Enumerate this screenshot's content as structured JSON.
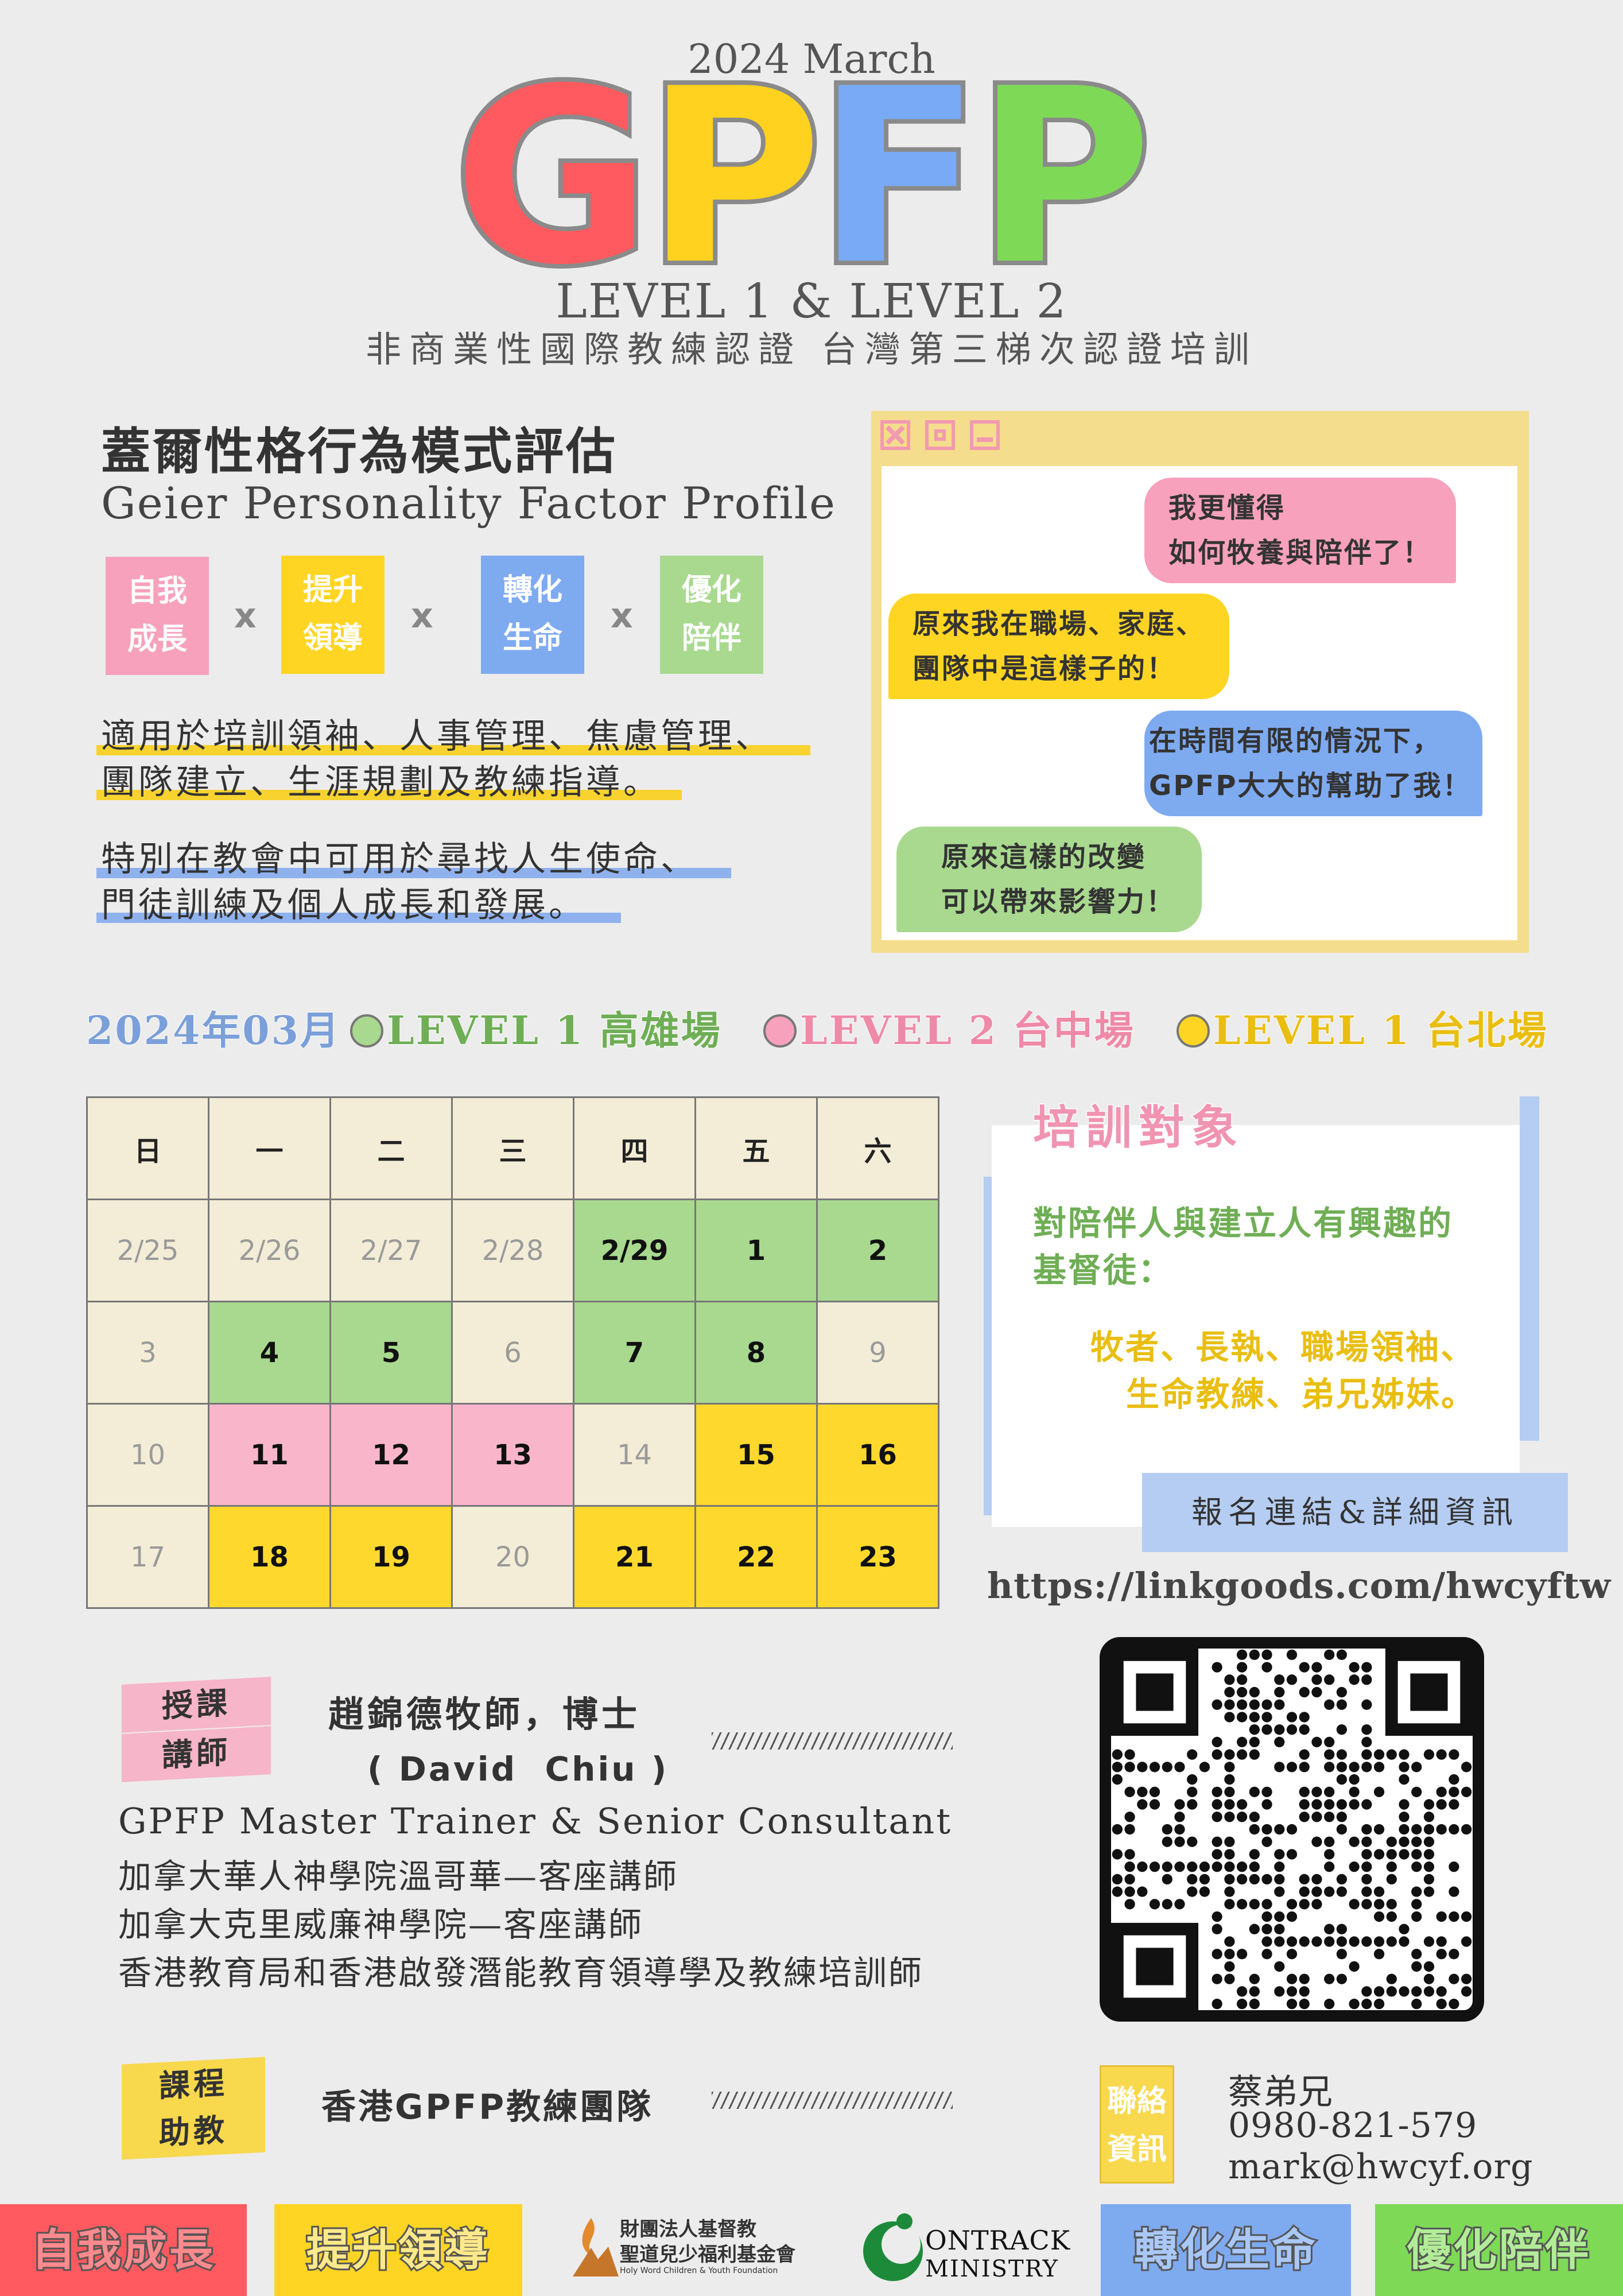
{
  "header": {
    "subtitle": "2024  March",
    "title_letters": [
      {
        "char": "G",
        "color": "#ff5a5f"
      },
      {
        "char": "P",
        "color": "#ffd21f"
      },
      {
        "char": "F",
        "color": "#78aaf5"
      },
      {
        "char": "P",
        "color": "#7ed957"
      }
    ],
    "levels": "LEVEL 1 & LEVEL 2",
    "tagline": "非商業性國際教練認證 台灣第三梯次認證培訓"
  },
  "intro": {
    "zh_title": "蓋爾性格行為模式評估",
    "en_title": "Geier Personality Factor Profile",
    "tags": [
      {
        "line1": "自我",
        "line2": "成長",
        "color": "#f7a1bc"
      },
      {
        "line1": "提升",
        "line2": "領導",
        "color": "#ffd524"
      },
      {
        "line1": "轉化",
        "line2": "生命",
        "color": "#7eaaf0"
      },
      {
        "line1": "優化",
        "line2": "陪伴",
        "color": "#a8d98f"
      }
    ],
    "tag_separator": "x",
    "para1": [
      "適用於培訓領袖、人事管理、焦慮管理、",
      "團隊建立、生涯規劃及教練指導。"
    ],
    "para2": [
      "特別在教會中可用於尋找人生使命、",
      "門徒訓練及個人成長和發展。"
    ]
  },
  "chat": {
    "bubbles": [
      {
        "lines": [
          "我更懂得",
          "如何牧養與陪伴了！"
        ],
        "color": "#f7a1bc"
      },
      {
        "lines": [
          "原來我在職場、家庭、",
          "團隊中是這樣子的！"
        ],
        "color": "#ffd524"
      },
      {
        "lines": [
          "在時間有限的情況下，",
          "GPFP大大的幫助了我！"
        ],
        "color": "#7eaaf0"
      },
      {
        "lines": [
          "原來這樣的改變",
          "可以帶來影響力！"
        ],
        "color": "#a8d98f"
      }
    ]
  },
  "schedule": {
    "month_label": "2024年03月",
    "legend": [
      {
        "label": "LEVEL 1 高雄場",
        "color": "#a8d98f",
        "text_color": "#6fae55"
      },
      {
        "label": "LEVEL 2 台中場",
        "color": "#f7a1bc",
        "text_color": "#ee8aa8"
      },
      {
        "label": "LEVEL 1 台北場",
        "color": "#ffd524",
        "text_color": "#e9be10"
      }
    ],
    "weekdays": [
      "日",
      "一",
      "二",
      "三",
      "四",
      "五",
      "六"
    ],
    "weeks": [
      [
        {
          "d": "2/25",
          "s": "off"
        },
        {
          "d": "2/26",
          "s": "off"
        },
        {
          "d": "2/27",
          "s": "off"
        },
        {
          "d": "2/28",
          "s": "off"
        },
        {
          "d": "2/29",
          "s": "g"
        },
        {
          "d": "1",
          "s": "g"
        },
        {
          "d": "2",
          "s": "g"
        }
      ],
      [
        {
          "d": "3",
          "s": "off"
        },
        {
          "d": "4",
          "s": "g"
        },
        {
          "d": "5",
          "s": "g"
        },
        {
          "d": "6",
          "s": "off"
        },
        {
          "d": "7",
          "s": "g"
        },
        {
          "d": "8",
          "s": "g"
        },
        {
          "d": "9",
          "s": "off"
        }
      ],
      [
        {
          "d": "10",
          "s": "off"
        },
        {
          "d": "11",
          "s": "p"
        },
        {
          "d": "12",
          "s": "p"
        },
        {
          "d": "13",
          "s": "p"
        },
        {
          "d": "14",
          "s": "off"
        },
        {
          "d": "15",
          "s": "y"
        },
        {
          "d": "16",
          "s": "y"
        }
      ],
      [
        {
          "d": "17",
          "s": "off"
        },
        {
          "d": "18",
          "s": "y"
        },
        {
          "d": "19",
          "s": "y"
        },
        {
          "d": "20",
          "s": "off"
        },
        {
          "d": "21",
          "s": "y"
        },
        {
          "d": "22",
          "s": "y"
        },
        {
          "d": "23",
          "s": "y"
        }
      ]
    ]
  },
  "target": {
    "title": "培訓對象",
    "line1": "對陪伴人與建立人有興趣的",
    "line2": "基督徒：",
    "line3": "牧者、長執、職場領袖、",
    "line4": "生命教練、弟兄姊妹。"
  },
  "register": {
    "label": "報名連結&詳細資訊",
    "link": "https://linkgoods.com/hwcyftw"
  },
  "instructor": {
    "ribbon_top": "授課",
    "ribbon_bottom": "講師",
    "name": "趙錦德牧師，博士",
    "name_en": "( David  Chiu )",
    "credentials": [
      "GPFP Master Trainer & Senior Consultant",
      "加拿大華人神學院溫哥華—客座講師",
      "加拿大克里威廉神學院—客座講師",
      "香港教育局和香港啟發潛能教育領導學及教練培訓師"
    ]
  },
  "assistant": {
    "ribbon_top": "課程",
    "ribbon_bottom": "助教",
    "name": "香港GPFP教練團隊"
  },
  "contact": {
    "label_top": "聯絡",
    "label_bottom": "資訊",
    "name": "蔡弟兄",
    "phone": "0980-821-579",
    "email": "mark@hwcyf.org"
  },
  "footer": {
    "items": [
      {
        "label": "自我成長",
        "color": "#ff5a5f"
      },
      {
        "label": "提升領導",
        "color": "#ffd524"
      },
      {
        "label": "轉化生命",
        "color": "#7eaaf0"
      },
      {
        "label": "優化陪伴",
        "color": "#7ed957"
      }
    ],
    "org1_line1": "財團法人基督教",
    "org1_line2": "聖道兒少福利基金會",
    "org1_line3": "Holy Word Children & Youth Foundation",
    "org2_line1": "ONTRACK",
    "org2_line2": "MINISTRY"
  }
}
